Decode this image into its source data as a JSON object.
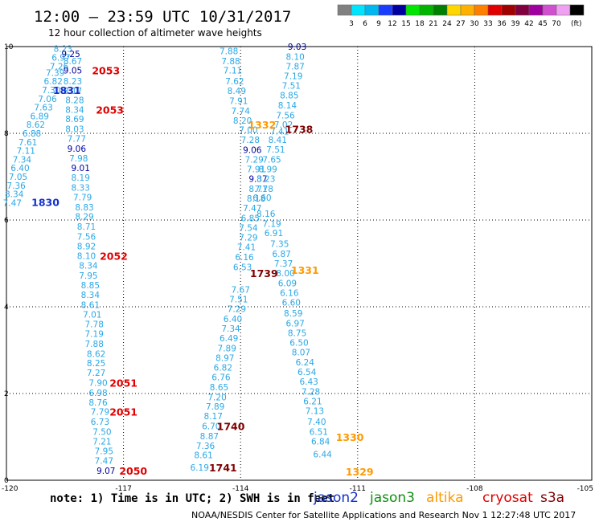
{
  "header": {
    "title": "12:00 – 23:59 UTC 10/31/2017",
    "subtitle": "12 hour collection of altimeter wave heights"
  },
  "colorbar": {
    "labels": [
      "3",
      "6",
      "9",
      "12",
      "15",
      "18",
      "21",
      "24",
      "27",
      "30",
      "33",
      "36",
      "39",
      "42",
      "45",
      "70"
    ],
    "unit": "(ft)",
    "colors": [
      "#808080",
      "#00e5ff",
      "#00b8f0",
      "#1a3cff",
      "#0000a0",
      "#00e600",
      "#00b400",
      "#008000",
      "#ffd700",
      "#ffb000",
      "#ff8000",
      "#e00000",
      "#a00000",
      "#800040",
      "#a000a0",
      "#d050d0",
      "#f0a0f0",
      "#000000"
    ]
  },
  "footer": {
    "note": "note:  1) Time is in UTC; 2) SWH is in feet",
    "credit": "NOAA/NESDIS Center for Satellite Applications and Research   Nov  1 12:27:48 UTC 2017",
    "legend": [
      {
        "label": "jason2",
        "color": "#1030d0"
      },
      {
        "label": "jason3",
        "color": "#109010"
      },
      {
        "label": "altika",
        "color": "#ff9900"
      },
      {
        "label": "cryosat",
        "color": "#e00000"
      },
      {
        "label": "s3a",
        "color": "#800000"
      }
    ]
  },
  "chart_data": {
    "type": "scatter",
    "xlim": [
      -120,
      -105
    ],
    "ylim": [
      0,
      10
    ],
    "x_ticks": [
      -120,
      -117,
      -114,
      -111,
      -108,
      -105
    ],
    "x_tick_labels": [
      "-120",
      "-117",
      "-114",
      "-111",
      "-108",
      "-105"
    ],
    "y_ticks": [
      0,
      2,
      4,
      6,
      8,
      10
    ],
    "y_tick_labels": [
      "0",
      "2",
      "4",
      "6",
      "8",
      "10"
    ],
    "grid": true,
    "palette": {
      "light": "#2aa8e6",
      "dark": "#0000a0",
      "jason2": "#1030d0",
      "cryosat": "#e00000",
      "altika": "#ff9900",
      "s3a": "#800000"
    },
    "points": [
      {
        "x": -118.55,
        "y": 9.95,
        "t": "8.23",
        "c": "light"
      },
      {
        "x": -118.35,
        "y": 9.83,
        "t": "9.25",
        "c": "dark"
      },
      {
        "x": -118.6,
        "y": 9.75,
        "t": "6.97",
        "c": "light"
      },
      {
        "x": -118.3,
        "y": 9.67,
        "t": "8.67",
        "c": "light"
      },
      {
        "x": -118.65,
        "y": 9.55,
        "t": "7.26",
        "c": "light"
      },
      {
        "x": -118.3,
        "y": 9.45,
        "t": "9.05",
        "c": "dark"
      },
      {
        "x": -118.75,
        "y": 9.4,
        "t": "7.39",
        "c": "light"
      },
      {
        "x": -118.8,
        "y": 9.2,
        "t": "6.82",
        "c": "light"
      },
      {
        "x": -118.3,
        "y": 9.2,
        "t": "8.23",
        "c": "light"
      },
      {
        "x": -118.85,
        "y": 9.0,
        "t": "7.30",
        "c": "light"
      },
      {
        "x": -118.3,
        "y": 8.98,
        "t": "8.17",
        "c": "light"
      },
      {
        "x": -118.95,
        "y": 8.8,
        "t": "7.06",
        "c": "light"
      },
      {
        "x": -118.25,
        "y": 8.77,
        "t": "8.28",
        "c": "light"
      },
      {
        "x": -119.05,
        "y": 8.6,
        "t": "7.63",
        "c": "light"
      },
      {
        "x": -118.25,
        "y": 8.55,
        "t": "8.34",
        "c": "light"
      },
      {
        "x": -119.15,
        "y": 8.4,
        "t": "6.89",
        "c": "light"
      },
      {
        "x": -118.25,
        "y": 8.33,
        "t": "8.69",
        "c": "light"
      },
      {
        "x": -119.25,
        "y": 8.2,
        "t": "8.62",
        "c": "light"
      },
      {
        "x": -118.25,
        "y": 8.1,
        "t": "8.03",
        "c": "light"
      },
      {
        "x": -119.35,
        "y": 8.0,
        "t": "6.88",
        "c": "light"
      },
      {
        "x": -118.2,
        "y": 7.88,
        "t": "7.77",
        "c": "light"
      },
      {
        "x": -119.45,
        "y": 7.8,
        "t": "7.61",
        "c": "light"
      },
      {
        "x": -118.2,
        "y": 7.65,
        "t": "9.06",
        "c": "dark"
      },
      {
        "x": -119.5,
        "y": 7.6,
        "t": "7.11",
        "c": "light"
      },
      {
        "x": -118.15,
        "y": 7.43,
        "t": "7.98",
        "c": "light"
      },
      {
        "x": -119.6,
        "y": 7.4,
        "t": "7.34",
        "c": "light"
      },
      {
        "x": -119.65,
        "y": 7.2,
        "t": "6.40",
        "c": "light"
      },
      {
        "x": -118.1,
        "y": 7.2,
        "t": "9.01",
        "c": "dark"
      },
      {
        "x": -119.7,
        "y": 7.0,
        "t": "7.05",
        "c": "light"
      },
      {
        "x": -118.1,
        "y": 6.98,
        "t": "8.19",
        "c": "light"
      },
      {
        "x": -119.75,
        "y": 6.8,
        "t": "7.36",
        "c": "light"
      },
      {
        "x": -118.1,
        "y": 6.75,
        "t": "8.33",
        "c": "light"
      },
      {
        "x": -119.8,
        "y": 6.6,
        "t": "8.34",
        "c": "light"
      },
      {
        "x": -118.05,
        "y": 6.53,
        "t": "7.79",
        "c": "light"
      },
      {
        "x": -119.85,
        "y": 6.4,
        "t": "7.47",
        "c": "light"
      },
      {
        "x": -118.0,
        "y": 6.3,
        "t": "8.83",
        "c": "light"
      },
      {
        "x": -118.0,
        "y": 6.08,
        "t": "8.29",
        "c": "light"
      },
      {
        "x": -117.95,
        "y": 5.85,
        "t": "8.71",
        "c": "light"
      },
      {
        "x": -117.95,
        "y": 5.62,
        "t": "7.56",
        "c": "light"
      },
      {
        "x": -117.95,
        "y": 5.4,
        "t": "8.92",
        "c": "light"
      },
      {
        "x": -117.95,
        "y": 5.18,
        "t": "8.10",
        "c": "light"
      },
      {
        "x": -117.9,
        "y": 4.95,
        "t": "8.34",
        "c": "light"
      },
      {
        "x": -117.9,
        "y": 4.72,
        "t": "7.95",
        "c": "light"
      },
      {
        "x": -117.85,
        "y": 4.5,
        "t": "8.85",
        "c": "light"
      },
      {
        "x": -117.85,
        "y": 4.28,
        "t": "8.34",
        "c": "light"
      },
      {
        "x": -117.85,
        "y": 4.05,
        "t": "8.61",
        "c": "light"
      },
      {
        "x": -117.8,
        "y": 3.82,
        "t": "7.01",
        "c": "light"
      },
      {
        "x": -117.75,
        "y": 3.6,
        "t": "7.78",
        "c": "light"
      },
      {
        "x": -117.75,
        "y": 3.38,
        "t": "7.19",
        "c": "light"
      },
      {
        "x": -117.75,
        "y": 3.15,
        "t": "7.88",
        "c": "light"
      },
      {
        "x": -117.7,
        "y": 2.92,
        "t": "8.62",
        "c": "light"
      },
      {
        "x": -117.7,
        "y": 2.7,
        "t": "8.25",
        "c": "light"
      },
      {
        "x": -117.7,
        "y": 2.48,
        "t": "7.27",
        "c": "light"
      },
      {
        "x": -117.65,
        "y": 2.25,
        "t": "7.90",
        "c": "light"
      },
      {
        "x": -117.65,
        "y": 2.02,
        "t": "6.98",
        "c": "light"
      },
      {
        "x": -117.65,
        "y": 1.8,
        "t": "8.76",
        "c": "light"
      },
      {
        "x": -117.6,
        "y": 1.58,
        "t": "7.79",
        "c": "light"
      },
      {
        "x": -117.6,
        "y": 1.35,
        "t": "6.73",
        "c": "light"
      },
      {
        "x": -117.55,
        "y": 1.12,
        "t": "7.50",
        "c": "light"
      },
      {
        "x": -117.55,
        "y": 0.9,
        "t": "7.21",
        "c": "light"
      },
      {
        "x": -117.5,
        "y": 0.68,
        "t": "7.95",
        "c": "light"
      },
      {
        "x": -117.5,
        "y": 0.45,
        "t": "7.47",
        "c": "light"
      },
      {
        "x": -117.45,
        "y": 0.22,
        "t": "9.07",
        "c": "dark"
      },
      {
        "x": -114.3,
        "y": 9.9,
        "t": "7.88",
        "c": "light"
      },
      {
        "x": -114.25,
        "y": 9.67,
        "t": "7.88",
        "c": "light"
      },
      {
        "x": -114.2,
        "y": 9.45,
        "t": "7.11",
        "c": "light"
      },
      {
        "x": -114.15,
        "y": 9.2,
        "t": "7.62",
        "c": "light"
      },
      {
        "x": -114.1,
        "y": 8.98,
        "t": "8.49",
        "c": "light"
      },
      {
        "x": -114.05,
        "y": 8.75,
        "t": "7.91",
        "c": "light"
      },
      {
        "x": -114.0,
        "y": 8.52,
        "t": "7.74",
        "c": "light"
      },
      {
        "x": -113.95,
        "y": 8.3,
        "t": "8.20",
        "c": "light"
      },
      {
        "x": -113.8,
        "y": 8.08,
        "t": "7.00",
        "c": "light"
      },
      {
        "x": -113.75,
        "y": 7.85,
        "t": "7.28",
        "c": "light"
      },
      {
        "x": -113.7,
        "y": 7.62,
        "t": "9.06",
        "c": "dark"
      },
      {
        "x": -113.65,
        "y": 7.4,
        "t": "7.29",
        "c": "light"
      },
      {
        "x": -113.6,
        "y": 7.18,
        "t": "7.91",
        "c": "light"
      },
      {
        "x": -113.55,
        "y": 6.95,
        "t": "9.37",
        "c": "dark"
      },
      {
        "x": -113.55,
        "y": 6.72,
        "t": "8.71",
        "c": "light"
      },
      {
        "x": -113.6,
        "y": 6.5,
        "t": "8.18",
        "c": "light"
      },
      {
        "x": -113.7,
        "y": 6.28,
        "t": "7.47",
        "c": "light"
      },
      {
        "x": -113.75,
        "y": 6.05,
        "t": "6.85",
        "c": "light"
      },
      {
        "x": -113.8,
        "y": 5.82,
        "t": "7.54",
        "c": "light"
      },
      {
        "x": -113.8,
        "y": 5.6,
        "t": "7.29",
        "c": "light"
      },
      {
        "x": -113.85,
        "y": 5.38,
        "t": "7.41",
        "c": "light"
      },
      {
        "x": -113.9,
        "y": 5.15,
        "t": "6.16",
        "c": "light"
      },
      {
        "x": -113.95,
        "y": 4.92,
        "t": "6.53",
        "c": "light"
      },
      {
        "x": -114.0,
        "y": 4.4,
        "t": "7.67",
        "c": "light"
      },
      {
        "x": -114.05,
        "y": 4.18,
        "t": "7.51",
        "c": "light"
      },
      {
        "x": -114.1,
        "y": 3.95,
        "t": "7.29",
        "c": "light"
      },
      {
        "x": -114.2,
        "y": 3.72,
        "t": "6.40",
        "c": "light"
      },
      {
        "x": -114.25,
        "y": 3.5,
        "t": "7.34",
        "c": "light"
      },
      {
        "x": -114.3,
        "y": 3.28,
        "t": "6.49",
        "c": "light"
      },
      {
        "x": -114.35,
        "y": 3.05,
        "t": "7.89",
        "c": "light"
      },
      {
        "x": -114.4,
        "y": 2.82,
        "t": "8.97",
        "c": "light"
      },
      {
        "x": -114.45,
        "y": 2.6,
        "t": "6.82",
        "c": "light"
      },
      {
        "x": -114.5,
        "y": 2.38,
        "t": "6.76",
        "c": "light"
      },
      {
        "x": -114.55,
        "y": 2.15,
        "t": "8.65",
        "c": "light"
      },
      {
        "x": -114.6,
        "y": 1.92,
        "t": "7.20",
        "c": "light"
      },
      {
        "x": -114.65,
        "y": 1.7,
        "t": "7.89",
        "c": "light"
      },
      {
        "x": -114.7,
        "y": 1.48,
        "t": "8.17",
        "c": "light"
      },
      {
        "x": -114.75,
        "y": 1.25,
        "t": "6.70",
        "c": "light"
      },
      {
        "x": -114.8,
        "y": 1.02,
        "t": "8.87",
        "c": "light"
      },
      {
        "x": -114.9,
        "y": 0.8,
        "t": "7.36",
        "c": "light"
      },
      {
        "x": -114.95,
        "y": 0.58,
        "t": "8.61",
        "c": "light"
      },
      {
        "x": -115.05,
        "y": 0.3,
        "t": "6.19",
        "c": "light"
      },
      {
        "x": -112.55,
        "y": 10.0,
        "t": "9.03",
        "c": "dark"
      },
      {
        "x": -112.6,
        "y": 9.77,
        "t": "8.10",
        "c": "light"
      },
      {
        "x": -112.6,
        "y": 9.55,
        "t": "7.87",
        "c": "light"
      },
      {
        "x": -112.65,
        "y": 9.32,
        "t": "7.19",
        "c": "light"
      },
      {
        "x": -112.7,
        "y": 9.1,
        "t": "7.51",
        "c": "light"
      },
      {
        "x": -112.75,
        "y": 8.88,
        "t": "8.85",
        "c": "light"
      },
      {
        "x": -112.8,
        "y": 8.65,
        "t": "8.14",
        "c": "light"
      },
      {
        "x": -112.85,
        "y": 8.42,
        "t": "7.56",
        "c": "light"
      },
      {
        "x": -112.9,
        "y": 8.2,
        "t": "7.02",
        "c": "light"
      },
      {
        "x": -113.0,
        "y": 8.05,
        "t": "7.41",
        "c": "light"
      },
      {
        "x": -113.05,
        "y": 7.85,
        "t": "8.41",
        "c": "light"
      },
      {
        "x": -113.1,
        "y": 7.63,
        "t": "7.51",
        "c": "light"
      },
      {
        "x": -113.2,
        "y": 7.4,
        "t": "7.65",
        "c": "light"
      },
      {
        "x": -113.3,
        "y": 7.18,
        "t": "8.99",
        "c": "light"
      },
      {
        "x": -113.35,
        "y": 6.95,
        "t": "8.23",
        "c": "light"
      },
      {
        "x": -113.4,
        "y": 6.72,
        "t": "7.78",
        "c": "light"
      },
      {
        "x": -113.45,
        "y": 6.52,
        "t": "6.60",
        "c": "light"
      },
      {
        "x": -113.35,
        "y": 6.15,
        "t": "8.16",
        "c": "light"
      },
      {
        "x": -113.2,
        "y": 5.92,
        "t": "7.19",
        "c": "light"
      },
      {
        "x": -113.15,
        "y": 5.7,
        "t": "6.91",
        "c": "light"
      },
      {
        "x": -113.0,
        "y": 5.45,
        "t": "7.35",
        "c": "light"
      },
      {
        "x": -112.95,
        "y": 5.22,
        "t": "6.87",
        "c": "light"
      },
      {
        "x": -112.9,
        "y": 5.0,
        "t": "7.37",
        "c": "light"
      },
      {
        "x": -112.85,
        "y": 4.78,
        "t": "8.00",
        "c": "light"
      },
      {
        "x": -112.8,
        "y": 4.55,
        "t": "6.09",
        "c": "light"
      },
      {
        "x": -112.75,
        "y": 4.32,
        "t": "6.16",
        "c": "light"
      },
      {
        "x": -112.7,
        "y": 4.1,
        "t": "6.60",
        "c": "light"
      },
      {
        "x": -112.65,
        "y": 3.85,
        "t": "8.59",
        "c": "light"
      },
      {
        "x": -112.6,
        "y": 3.62,
        "t": "6.97",
        "c": "light"
      },
      {
        "x": -112.55,
        "y": 3.4,
        "t": "8.75",
        "c": "light"
      },
      {
        "x": -112.5,
        "y": 3.18,
        "t": "6.50",
        "c": "light"
      },
      {
        "x": -112.45,
        "y": 2.95,
        "t": "8.07",
        "c": "light"
      },
      {
        "x": -112.35,
        "y": 2.72,
        "t": "6.24",
        "c": "light"
      },
      {
        "x": -112.3,
        "y": 2.5,
        "t": "6.54",
        "c": "light"
      },
      {
        "x": -112.25,
        "y": 2.28,
        "t": "6.43",
        "c": "light"
      },
      {
        "x": -112.2,
        "y": 2.05,
        "t": "7.28",
        "c": "light"
      },
      {
        "x": -112.15,
        "y": 1.82,
        "t": "6.21",
        "c": "light"
      },
      {
        "x": -112.1,
        "y": 1.6,
        "t": "7.13",
        "c": "light"
      },
      {
        "x": -112.05,
        "y": 1.35,
        "t": "7.40",
        "c": "light"
      },
      {
        "x": -112.0,
        "y": 1.12,
        "t": "6.51",
        "c": "light"
      },
      {
        "x": -111.95,
        "y": 0.9,
        "t": "6.84",
        "c": "light"
      },
      {
        "x": -111.9,
        "y": 0.6,
        "t": "6.44",
        "c": "light"
      }
    ],
    "time_labels": [
      {
        "x": -117.45,
        "y": 9.45,
        "t": "2053",
        "c": "cryosat"
      },
      {
        "x": -117.35,
        "y": 8.55,
        "t": "2053",
        "c": "cryosat"
      },
      {
        "x": -118.45,
        "y": 9.0,
        "t": "1831",
        "c": "jason2"
      },
      {
        "x": -119.0,
        "y": 6.42,
        "t": "1830",
        "c": "jason2"
      },
      {
        "x": -117.25,
        "y": 5.18,
        "t": "2052",
        "c": "cryosat"
      },
      {
        "x": -117.0,
        "y": 2.25,
        "t": "2051",
        "c": "cryosat"
      },
      {
        "x": -117.0,
        "y": 1.58,
        "t": "2051",
        "c": "cryosat"
      },
      {
        "x": -116.75,
        "y": 0.22,
        "t": "2050",
        "c": "cryosat"
      },
      {
        "x": -113.45,
        "y": 8.2,
        "t": "1332",
        "c": "altika"
      },
      {
        "x": -112.5,
        "y": 8.1,
        "t": "1738",
        "c": "s3a"
      },
      {
        "x": -112.35,
        "y": 4.85,
        "t": "1331",
        "c": "altika"
      },
      {
        "x": -113.4,
        "y": 4.78,
        "t": "1739",
        "c": "s3a"
      },
      {
        "x": -114.25,
        "y": 1.25,
        "t": "1740",
        "c": "s3a"
      },
      {
        "x": -114.45,
        "y": 0.3,
        "t": "1741",
        "c": "s3a"
      },
      {
        "x": -111.2,
        "y": 1.0,
        "t": "1330",
        "c": "altika"
      },
      {
        "x": -110.95,
        "y": 0.2,
        "t": "1329",
        "c": "altika"
      }
    ]
  }
}
